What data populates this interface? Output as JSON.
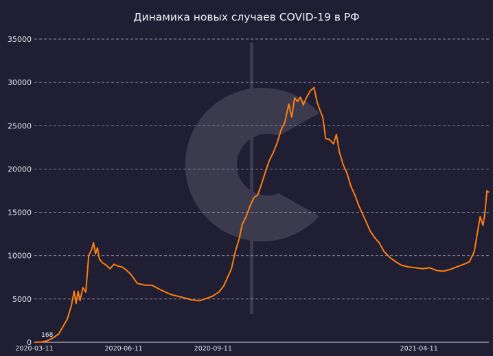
{
  "chart_data": {
    "type": "line",
    "title": "Динамика новых случаев COVID-19 в РФ",
    "xlabel": "",
    "ylabel": "",
    "x_range": [
      "2020-03-11",
      "2021-06-22"
    ],
    "ylim": [
      0,
      35000
    ],
    "yticks": [
      0,
      5000,
      10000,
      15000,
      20000,
      25000,
      30000,
      35000
    ],
    "xticks": [
      "2020-03-11",
      "2020-06-11",
      "2020-09-11",
      "2021-04-11"
    ],
    "grid": true,
    "line_color": "#ff7f0e",
    "annotation": {
      "text": "168",
      "date": "2020-03-21",
      "value": 168
    },
    "series": [
      {
        "values": [
          [
            "2020-03-11",
            0
          ],
          [
            "2020-03-18",
            30
          ],
          [
            "2020-03-24",
            150
          ],
          [
            "2020-03-30",
            500
          ],
          [
            "2020-04-05",
            950
          ],
          [
            "2020-04-10",
            1900
          ],
          [
            "2020-04-14",
            2700
          ],
          [
            "2020-04-18",
            4200
          ],
          [
            "2020-04-21",
            5900
          ],
          [
            "2020-04-23",
            4500
          ],
          [
            "2020-04-25",
            5900
          ],
          [
            "2020-04-27",
            4800
          ],
          [
            "2020-04-30",
            6300
          ],
          [
            "2020-05-03",
            5800
          ],
          [
            "2020-05-06",
            10000
          ],
          [
            "2020-05-09",
            10700
          ],
          [
            "2020-05-11",
            11500
          ],
          [
            "2020-05-13",
            10200
          ],
          [
            "2020-05-15",
            10900
          ],
          [
            "2020-05-17",
            9600
          ],
          [
            "2020-05-20",
            9200
          ],
          [
            "2020-05-24",
            8900
          ],
          [
            "2020-05-28",
            8500
          ],
          [
            "2020-06-01",
            9000
          ],
          [
            "2020-06-05",
            8800
          ],
          [
            "2020-06-09",
            8700
          ],
          [
            "2020-06-13",
            8400
          ],
          [
            "2020-06-18",
            7900
          ],
          [
            "2020-06-25",
            6800
          ],
          [
            "2020-07-03",
            6600
          ],
          [
            "2020-07-10",
            6600
          ],
          [
            "2020-07-20",
            6000
          ],
          [
            "2020-07-30",
            5500
          ],
          [
            "2020-08-10",
            5200
          ],
          [
            "2020-08-20",
            4900
          ],
          [
            "2020-08-28",
            4800
          ],
          [
            "2020-09-05",
            5100
          ],
          [
            "2020-09-10",
            5300
          ],
          [
            "2020-09-17",
            5800
          ],
          [
            "2020-09-22",
            6500
          ],
          [
            "2020-09-26",
            7500
          ],
          [
            "2020-09-30",
            8500
          ],
          [
            "2020-10-04",
            10500
          ],
          [
            "2020-10-08",
            12000
          ],
          [
            "2020-10-11",
            13600
          ],
          [
            "2020-10-15",
            14500
          ],
          [
            "2020-10-19",
            15700
          ],
          [
            "2020-10-23",
            16700
          ],
          [
            "2020-10-27",
            17000
          ],
          [
            "2020-10-31",
            18300
          ],
          [
            "2020-11-04",
            19700
          ],
          [
            "2020-11-08",
            21000
          ],
          [
            "2020-11-12",
            21900
          ],
          [
            "2020-11-16",
            23000
          ],
          [
            "2020-11-20",
            24500
          ],
          [
            "2020-11-24",
            25400
          ],
          [
            "2020-11-28",
            27500
          ],
          [
            "2020-12-01",
            26000
          ],
          [
            "2020-12-04",
            28200
          ],
          [
            "2020-12-07",
            27800
          ],
          [
            "2020-12-10",
            28300
          ],
          [
            "2020-12-13",
            27400
          ],
          [
            "2020-12-16",
            28200
          ],
          [
            "2020-12-20",
            29000
          ],
          [
            "2020-12-24",
            29400
          ],
          [
            "2020-12-27",
            27800
          ],
          [
            "2020-12-30",
            26800
          ],
          [
            "2021-01-02",
            26000
          ],
          [
            "2021-01-05",
            23500
          ],
          [
            "2021-01-09",
            23400
          ],
          [
            "2021-01-13",
            22900
          ],
          [
            "2021-01-16",
            24000
          ],
          [
            "2021-01-19",
            22000
          ],
          [
            "2021-01-23",
            20500
          ],
          [
            "2021-01-27",
            19500
          ],
          [
            "2021-01-31",
            18000
          ],
          [
            "2021-02-04",
            17000
          ],
          [
            "2021-02-08",
            15800
          ],
          [
            "2021-02-12",
            14800
          ],
          [
            "2021-02-16",
            13800
          ],
          [
            "2021-02-20",
            12800
          ],
          [
            "2021-02-25",
            12000
          ],
          [
            "2021-03-01",
            11500
          ],
          [
            "2021-03-06",
            10500
          ],
          [
            "2021-03-12",
            9800
          ],
          [
            "2021-03-18",
            9300
          ],
          [
            "2021-03-24",
            8900
          ],
          [
            "2021-03-31",
            8700
          ],
          [
            "2021-04-08",
            8600
          ],
          [
            "2021-04-15",
            8500
          ],
          [
            "2021-04-22",
            8600
          ],
          [
            "2021-04-29",
            8300
          ],
          [
            "2021-05-06",
            8200
          ],
          [
            "2021-05-13",
            8400
          ],
          [
            "2021-05-20",
            8700
          ],
          [
            "2021-05-27",
            9000
          ],
          [
            "2021-06-02",
            9300
          ],
          [
            "2021-06-07",
            10500
          ],
          [
            "2021-06-10",
            12500
          ],
          [
            "2021-06-13",
            14500
          ],
          [
            "2021-06-16",
            13500
          ],
          [
            "2021-06-18",
            15000
          ],
          [
            "2021-06-20",
            17500
          ],
          [
            "2021-06-22",
            17300
          ]
        ]
      }
    ]
  }
}
